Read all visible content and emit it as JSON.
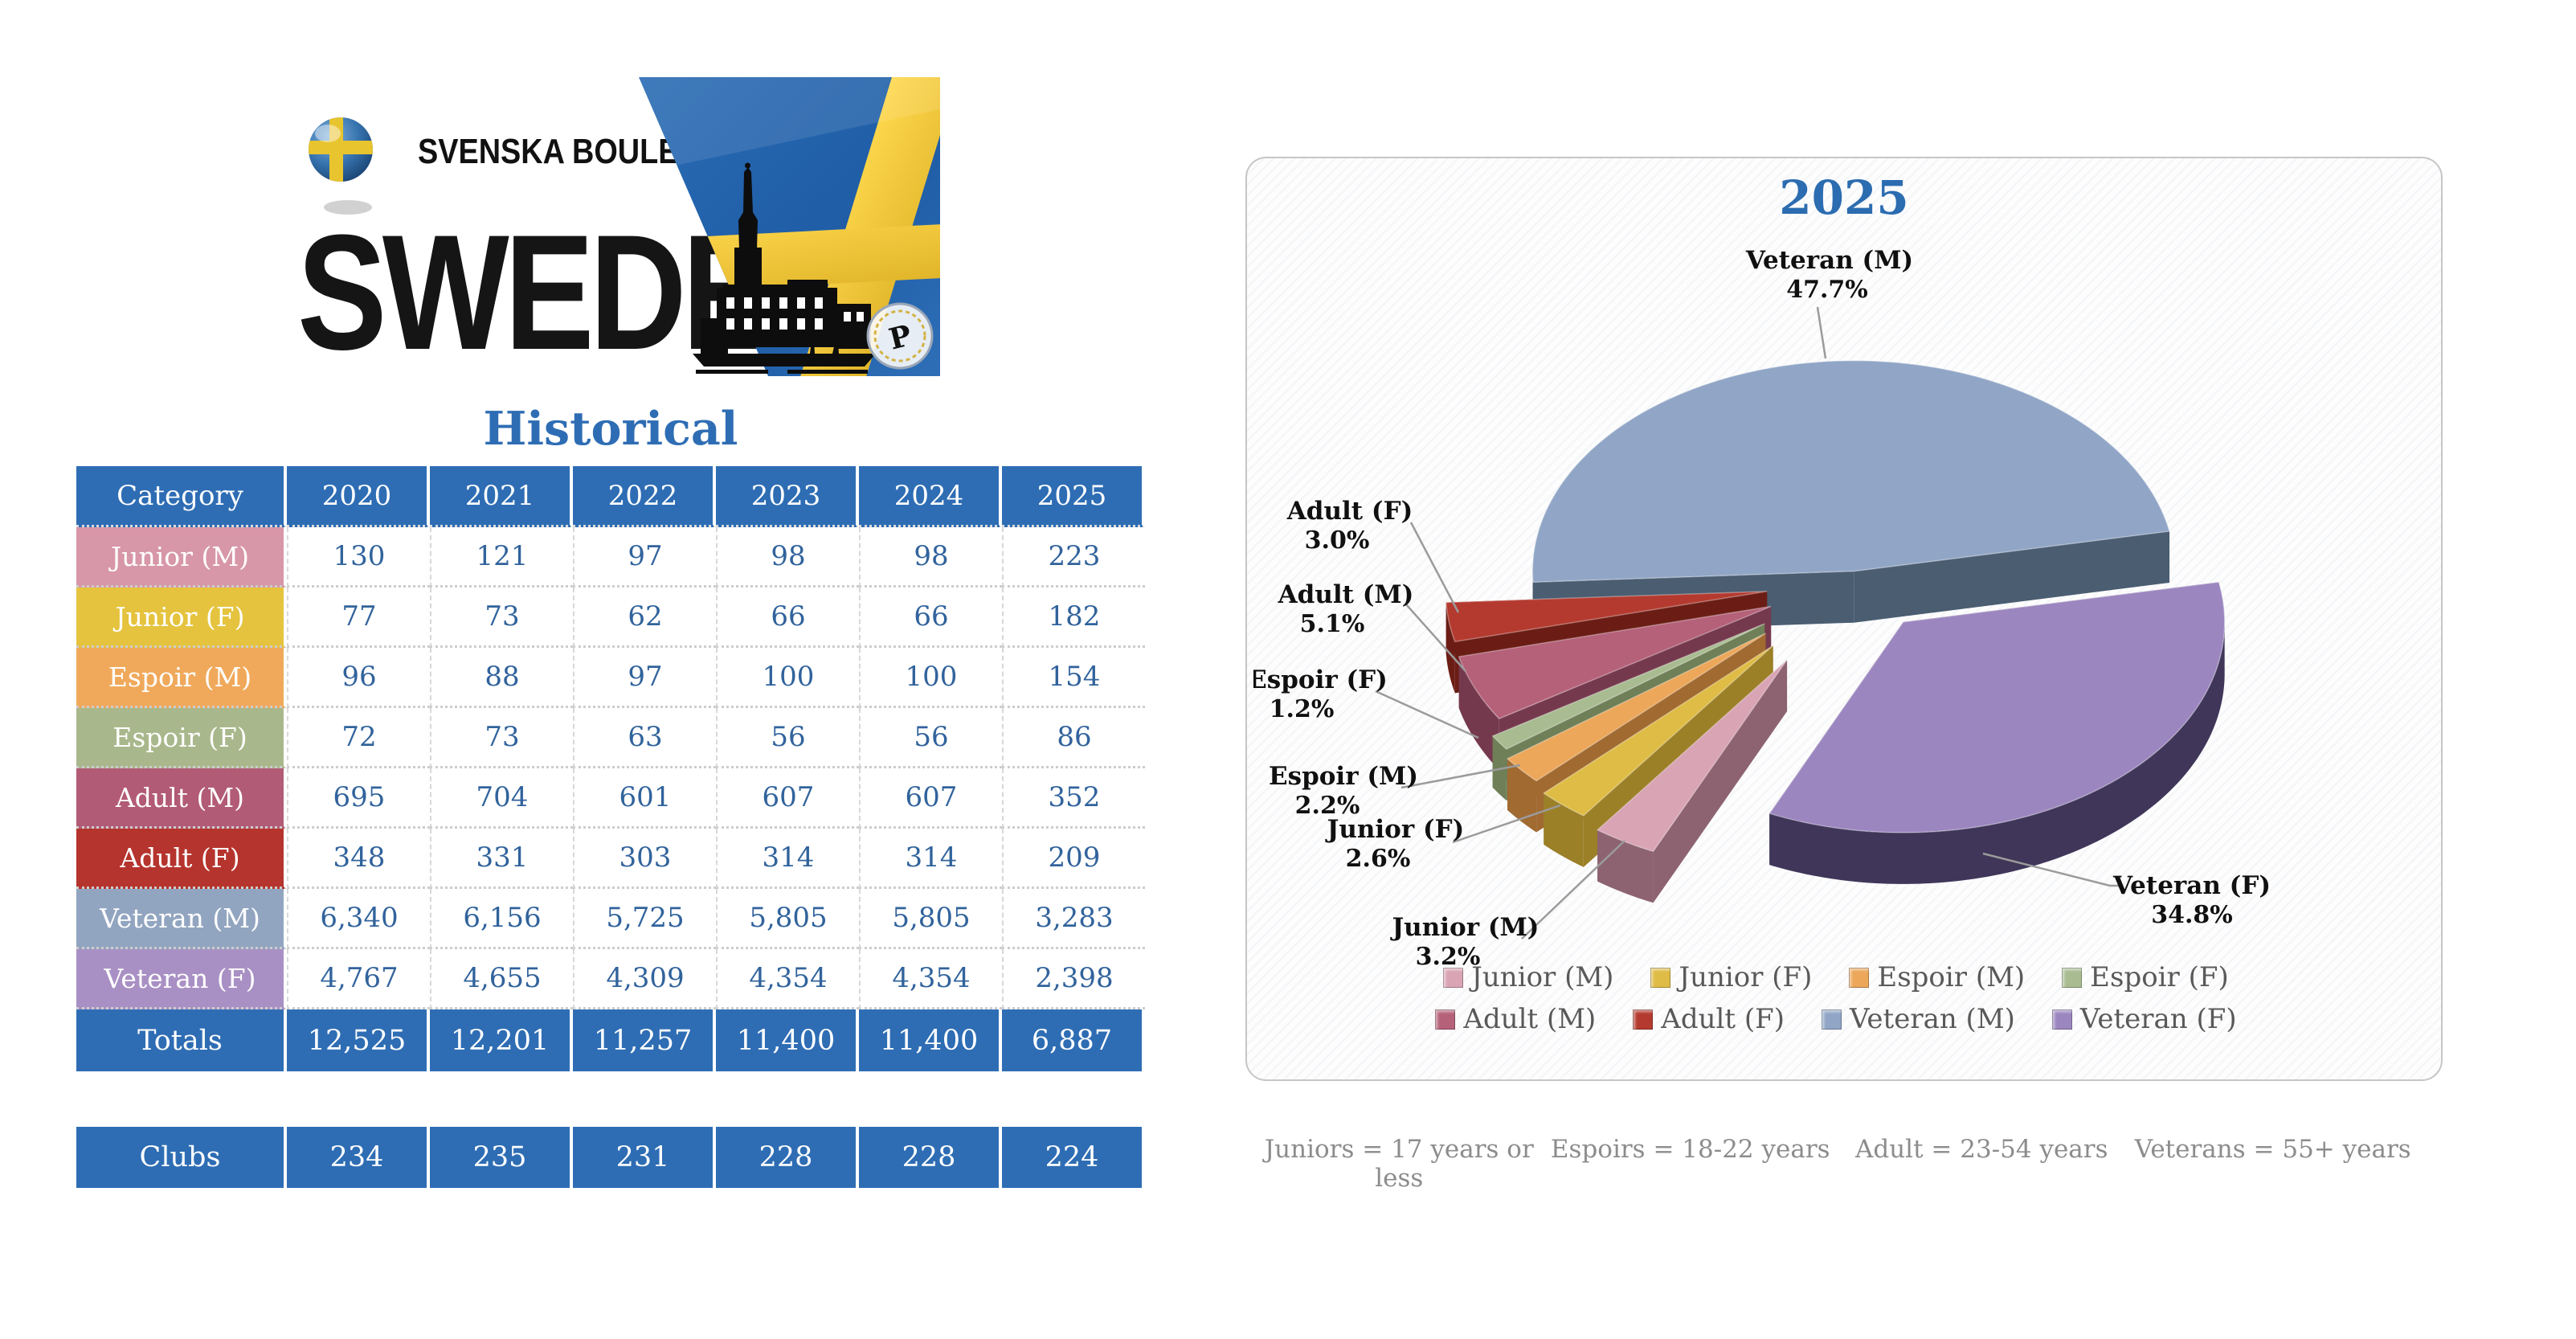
{
  "header": {
    "org_name": "SVENSKA BOULEFÖRBUNDET",
    "country": "SWEDEN"
  },
  "colors": {
    "accent_blue": "#2e6db4",
    "value_text": "#31639c"
  },
  "table": {
    "title": "Historical",
    "columns": [
      "Category",
      "2020",
      "2021",
      "2022",
      "2023",
      "2024",
      "2025"
    ],
    "rows": [
      {
        "label": "Junior (M)",
        "color": "#d797a9",
        "values": [
          "130",
          "121",
          "97",
          "98",
          "98",
          "223"
        ]
      },
      {
        "label": "Junior (F)",
        "color": "#e5c33e",
        "values": [
          "77",
          "73",
          "62",
          "66",
          "66",
          "182"
        ]
      },
      {
        "label": "Espoir (M)",
        "color": "#f0a95b",
        "values": [
          "96",
          "88",
          "97",
          "100",
          "100",
          "154"
        ]
      },
      {
        "label": "Espoir (F)",
        "color": "#a9b88c",
        "values": [
          "72",
          "73",
          "63",
          "56",
          "56",
          "86"
        ]
      },
      {
        "label": "Adult (M)",
        "color": "#b25b76",
        "values": [
          "695",
          "704",
          "601",
          "607",
          "607",
          "352"
        ]
      },
      {
        "label": "Adult (F)",
        "color": "#b5342d",
        "values": [
          "348",
          "331",
          "303",
          "314",
          "314",
          "209"
        ]
      },
      {
        "label": "Veteran (M)",
        "color": "#92a5c0",
        "values": [
          "6,340",
          "6,156",
          "5,725",
          "5,805",
          "5,805",
          "3,283"
        ]
      },
      {
        "label": "Veteran (F)",
        "color": "#a990c4",
        "values": [
          "4,767",
          "4,655",
          "4,309",
          "4,354",
          "4,354",
          "2,398"
        ]
      }
    ],
    "totals": {
      "label": "Totals",
      "values": [
        "12,525",
        "12,201",
        "11,257",
        "11,400",
        "11,400",
        "6,887"
      ]
    },
    "clubs": {
      "label": "Clubs",
      "values": [
        "234",
        "235",
        "231",
        "228",
        "228",
        "224"
      ]
    }
  },
  "chart_data": {
    "type": "pie",
    "title": "2025",
    "legend_position": "bottom",
    "slices": [
      {
        "name": "Junior (M)",
        "value": 223,
        "pct": "3.2%",
        "color": "#d9a4b4",
        "dark": "#8d6371"
      },
      {
        "name": "Junior (F)",
        "value": 182,
        "pct": "2.6%",
        "color": "#dfbc45",
        "dark": "#9b8028"
      },
      {
        "name": "Espoir (M)",
        "value": 154,
        "pct": "2.2%",
        "color": "#eca75a",
        "dark": "#a06a31"
      },
      {
        "name": "Espoir (F)",
        "value": 86,
        "pct": "1.2%",
        "color": "#a9bc91",
        "dark": "#6f7f57"
      },
      {
        "name": "Adult (M)",
        "value": 352,
        "pct": "5.1%",
        "color": "#b56179",
        "dark": "#75394e"
      },
      {
        "name": "Adult (F)",
        "value": 209,
        "pct": "3.0%",
        "color": "#b43a2f",
        "dark": "#6b1d15"
      },
      {
        "name": "Veteran (M)",
        "value": 3283,
        "pct": "47.7%",
        "color": "#91a6c6",
        "dark": "#4a5d71"
      },
      {
        "name": "Veteran (F)",
        "value": 2398,
        "pct": "34.8%",
        "color": "#9b86bf",
        "dark": "#3f3659"
      }
    ],
    "footnotes": [
      "Juniors = 17 years or less",
      "Espoirs = 18-22 years",
      "Adult = 23-54 years",
      "Veterans = 55+ years"
    ]
  }
}
